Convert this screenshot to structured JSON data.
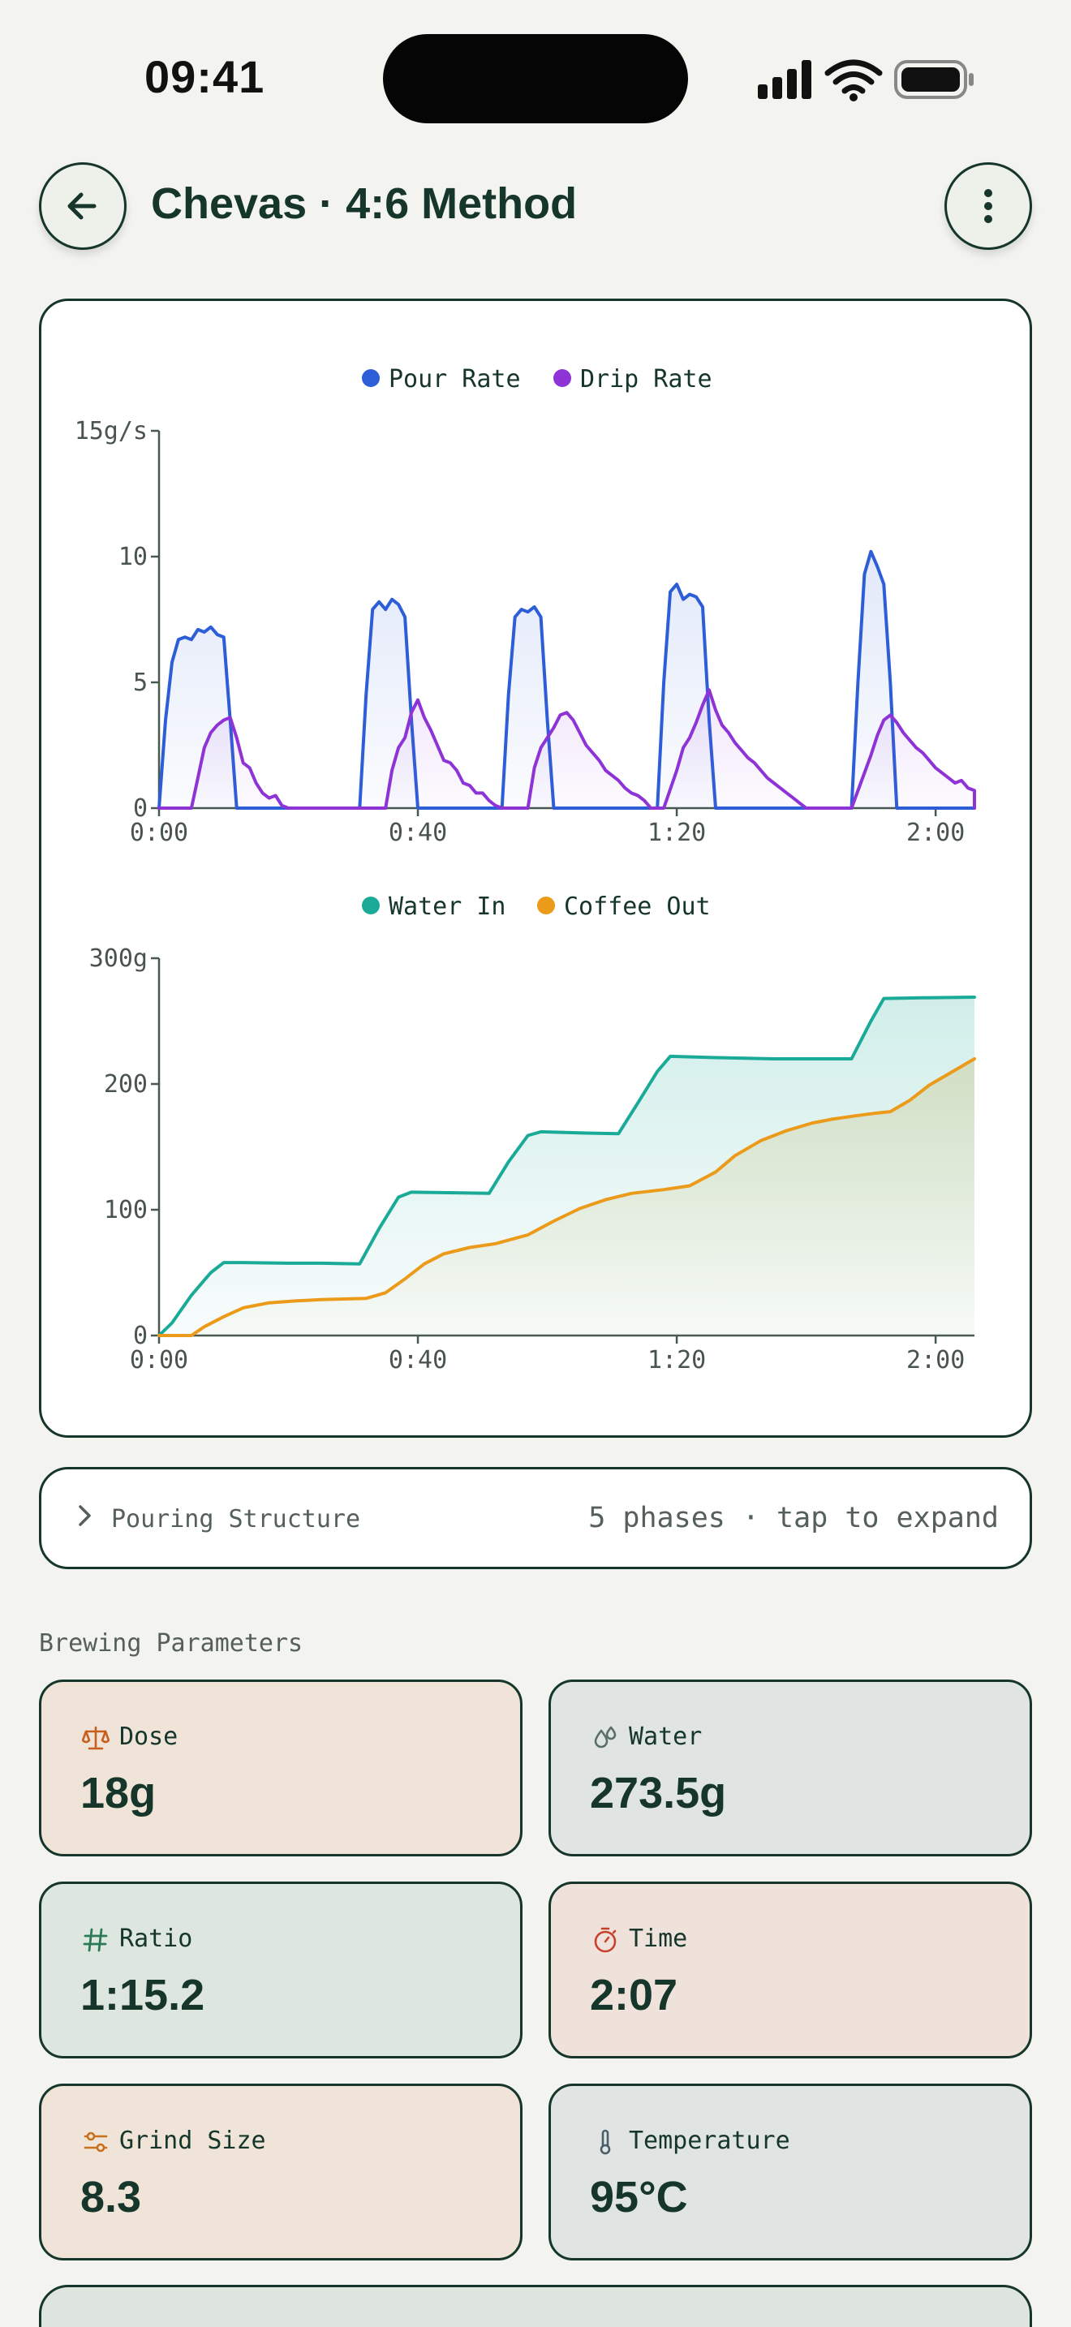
{
  "status": {
    "time": "09:41"
  },
  "header": {
    "title": "Chevas · 4:6 Method"
  },
  "colors": {
    "pour": "#2d5ed8",
    "drip": "#8e33d6",
    "water_in": "#1aaa98",
    "coffee_out": "#eb9a1a",
    "accent_dark": "#16362b"
  },
  "chart_data": [
    {
      "type": "line",
      "title": "",
      "ylabel": "",
      "xlabel": "",
      "x_ticks": [
        "0:00",
        "0:40",
        "1:20",
        "2:00"
      ],
      "y_ticks": [
        "0",
        "5",
        "10",
        "15g/s"
      ],
      "xlim": [
        0,
        126
      ],
      "ylim": [
        0,
        15
      ],
      "legend_position": "top-center",
      "series": [
        {
          "name": "Pour Rate",
          "color": "#2d5ed8",
          "points": [
            [
              0,
              0
            ],
            [
              1,
              3.5
            ],
            [
              2,
              5.8
            ],
            [
              3,
              6.7
            ],
            [
              4,
              6.8
            ],
            [
              5,
              6.7
            ],
            [
              6,
              7.1
            ],
            [
              7,
              7.0
            ],
            [
              8,
              7.2
            ],
            [
              9,
              6.9
            ],
            [
              10,
              6.8
            ],
            [
              11,
              3.5
            ],
            [
              12,
              0
            ],
            [
              31,
              0
            ],
            [
              32,
              4.5
            ],
            [
              33,
              7.9
            ],
            [
              34,
              8.2
            ],
            [
              35,
              7.9
            ],
            [
              36,
              8.3
            ],
            [
              37,
              8.1
            ],
            [
              38,
              7.6
            ],
            [
              39,
              3.5
            ],
            [
              40,
              0
            ],
            [
              53,
              0
            ],
            [
              54,
              4.5
            ],
            [
              55,
              7.6
            ],
            [
              56,
              7.9
            ],
            [
              57,
              7.8
            ],
            [
              58,
              8.0
            ],
            [
              59,
              7.6
            ],
            [
              60,
              3.5
            ],
            [
              61,
              0
            ],
            [
              77,
              0
            ],
            [
              78,
              5
            ],
            [
              79,
              8.6
            ],
            [
              80,
              8.9
            ],
            [
              81,
              8.3
            ],
            [
              82,
              8.5
            ],
            [
              83,
              8.4
            ],
            [
              84,
              8.0
            ],
            [
              85,
              3.5
            ],
            [
              86,
              0
            ],
            [
              107,
              0
            ],
            [
              108,
              5
            ],
            [
              109,
              9.3
            ],
            [
              110,
              10.2
            ],
            [
              111,
              9.6
            ],
            [
              112,
              8.9
            ],
            [
              113,
              5
            ],
            [
              114,
              0
            ],
            [
              126,
              0
            ]
          ]
        },
        {
          "name": "Drip Rate",
          "color": "#8e33d6",
          "points": [
            [
              0,
              0
            ],
            [
              5,
              0
            ],
            [
              6,
              1.2
            ],
            [
              7,
              2.4
            ],
            [
              8,
              3.0
            ],
            [
              9,
              3.3
            ],
            [
              10,
              3.5
            ],
            [
              11,
              3.6
            ],
            [
              12,
              2.8
            ],
            [
              13,
              1.8
            ],
            [
              14,
              1.6
            ],
            [
              15,
              1.0
            ],
            [
              16,
              0.6
            ],
            [
              17,
              0.4
            ],
            [
              18,
              0.5
            ],
            [
              19,
              0.1
            ],
            [
              20,
              0
            ],
            [
              31,
              0
            ],
            [
              35,
              0
            ],
            [
              36,
              1.5
            ],
            [
              37,
              2.4
            ],
            [
              38,
              2.8
            ],
            [
              39,
              3.8
            ],
            [
              40,
              4.3
            ],
            [
              41,
              3.6
            ],
            [
              42,
              3.1
            ],
            [
              43,
              2.5
            ],
            [
              44,
              1.9
            ],
            [
              45,
              1.8
            ],
            [
              46,
              1.5
            ],
            [
              47,
              1.0
            ],
            [
              48,
              0.9
            ],
            [
              49,
              0.6
            ],
            [
              50,
              0.6
            ],
            [
              51,
              0.3
            ],
            [
              52,
              0.1
            ],
            [
              53,
              0
            ],
            [
              57,
              0
            ],
            [
              58,
              1.6
            ],
            [
              59,
              2.4
            ],
            [
              60,
              2.8
            ],
            [
              61,
              3.2
            ],
            [
              62,
              3.7
            ],
            [
              63,
              3.8
            ],
            [
              64,
              3.5
            ],
            [
              65,
              3.0
            ],
            [
              66,
              2.5
            ],
            [
              67,
              2.2
            ],
            [
              68,
              1.9
            ],
            [
              69,
              1.5
            ],
            [
              70,
              1.3
            ],
            [
              71,
              1.1
            ],
            [
              72,
              0.8
            ],
            [
              73,
              0.6
            ],
            [
              74,
              0.5
            ],
            [
              75,
              0.3
            ],
            [
              76,
              0
            ],
            [
              78,
              0
            ],
            [
              80,
              1.5
            ],
            [
              81,
              2.4
            ],
            [
              82,
              2.8
            ],
            [
              83,
              3.4
            ],
            [
              84,
              4.1
            ],
            [
              85,
              4.7
            ],
            [
              86,
              3.9
            ],
            [
              87,
              3.3
            ],
            [
              88,
              3.0
            ],
            [
              89,
              2.6
            ],
            [
              90,
              2.3
            ],
            [
              91,
              2.0
            ],
            [
              92,
              1.8
            ],
            [
              93,
              1.5
            ],
            [
              94,
              1.2
            ],
            [
              95,
              1.0
            ],
            [
              96,
              0.8
            ],
            [
              97,
              0.6
            ],
            [
              98,
              0.4
            ],
            [
              99,
              0.2
            ],
            [
              100,
              0
            ],
            [
              107,
              0
            ],
            [
              110,
              2.1
            ],
            [
              111,
              2.9
            ],
            [
              112,
              3.5
            ],
            [
              113,
              3.7
            ],
            [
              114,
              3.4
            ],
            [
              115,
              3.0
            ],
            [
              116,
              2.7
            ],
            [
              117,
              2.4
            ],
            [
              118,
              2.2
            ],
            [
              119,
              1.9
            ],
            [
              120,
              1.6
            ],
            [
              121,
              1.4
            ],
            [
              122,
              1.2
            ],
            [
              123,
              1.0
            ],
            [
              124,
              1.1
            ],
            [
              125,
              0.8
            ],
            [
              126,
              0.7
            ],
            [
              126,
              0
            ]
          ]
        }
      ]
    },
    {
      "type": "area",
      "title": "",
      "ylabel": "",
      "xlabel": "",
      "x_ticks": [
        "0:00",
        "0:40",
        "1:20",
        "2:00"
      ],
      "y_ticks": [
        "0",
        "100",
        "200",
        "300g"
      ],
      "xlim": [
        0,
        126
      ],
      "ylim": [
        0,
        300
      ],
      "legend_position": "top-center",
      "series": [
        {
          "name": "Water In",
          "color": "#1aaa98",
          "points": [
            [
              0,
              0
            ],
            [
              2,
              10
            ],
            [
              5,
              32
            ],
            [
              8,
              50
            ],
            [
              10,
              58
            ],
            [
              13,
              58
            ],
            [
              20,
              57.5
            ],
            [
              25,
              57.5
            ],
            [
              31,
              57
            ],
            [
              34,
              85
            ],
            [
              37,
              110
            ],
            [
              39,
              114
            ],
            [
              46,
              113.5
            ],
            [
              51,
              113
            ],
            [
              54,
              138
            ],
            [
              57,
              159
            ],
            [
              59,
              162
            ],
            [
              66,
              161
            ],
            [
              71,
              160.5
            ],
            [
              74,
              185
            ],
            [
              77,
              210
            ],
            [
              79,
              222
            ],
            [
              86,
              221
            ],
            [
              95,
              220
            ],
            [
              107,
              220
            ],
            [
              110,
              250
            ],
            [
              112,
              268
            ],
            [
              118,
              268.5
            ],
            [
              126,
              269
            ]
          ]
        },
        {
          "name": "Coffee Out",
          "color": "#eb9a1a",
          "points": [
            [
              0,
              0
            ],
            [
              5,
              0
            ],
            [
              7,
              7
            ],
            [
              10,
              15
            ],
            [
              13,
              22
            ],
            [
              17,
              26
            ],
            [
              21,
              27.5
            ],
            [
              25,
              28.5
            ],
            [
              32,
              29.5
            ],
            [
              35,
              34
            ],
            [
              38,
              45
            ],
            [
              41,
              57
            ],
            [
              44,
              65
            ],
            [
              48,
              70
            ],
            [
              52,
              73
            ],
            [
              57,
              80
            ],
            [
              61,
              91
            ],
            [
              65,
              101
            ],
            [
              69,
              108
            ],
            [
              73,
              113
            ],
            [
              78,
              116
            ],
            [
              82,
              119
            ],
            [
              86,
              130
            ],
            [
              89,
              143
            ],
            [
              93,
              155
            ],
            [
              97,
              163
            ],
            [
              101,
              169
            ],
            [
              104,
              172
            ],
            [
              108,
              175
            ],
            [
              111,
              177
            ],
            [
              113,
              178
            ],
            [
              116,
              187
            ],
            [
              119,
              199
            ],
            [
              122,
              208
            ],
            [
              126,
              220
            ]
          ]
        }
      ]
    }
  ],
  "pouring": {
    "label": "Pouring Structure",
    "meta": "5 phases · tap to expand"
  },
  "params": {
    "section_label": "Brewing Parameters",
    "dose": {
      "label": "Dose",
      "value": "18g",
      "icon": "scale-icon",
      "bg": "#efe4d7",
      "icon_color": "#c85f1c"
    },
    "water": {
      "label": "Water",
      "value": "273.5g",
      "icon": "water-drops-icon",
      "bg": "#e0e5e3",
      "icon_color": "#5a6e6a"
    },
    "ratio": {
      "label": "Ratio",
      "value": "1:15.2",
      "icon": "hash-icon",
      "bg": "#dde6df",
      "icon_color": "#2b7a56"
    },
    "time": {
      "label": "Time",
      "value": "2:07",
      "icon": "stopwatch-icon",
      "bg": "#efe2db",
      "icon_color": "#c8402a"
    },
    "grind": {
      "label": "Grind Size",
      "value": "8.3",
      "icon": "sliders-icon",
      "bg": "#efe4d7",
      "icon_color": "#c8701c"
    },
    "temperature": {
      "label": "Temperature",
      "value": "95°C",
      "icon": "thermometer-icon",
      "bg": "#e0e5e3",
      "icon_color": "#4a5e6a"
    }
  }
}
